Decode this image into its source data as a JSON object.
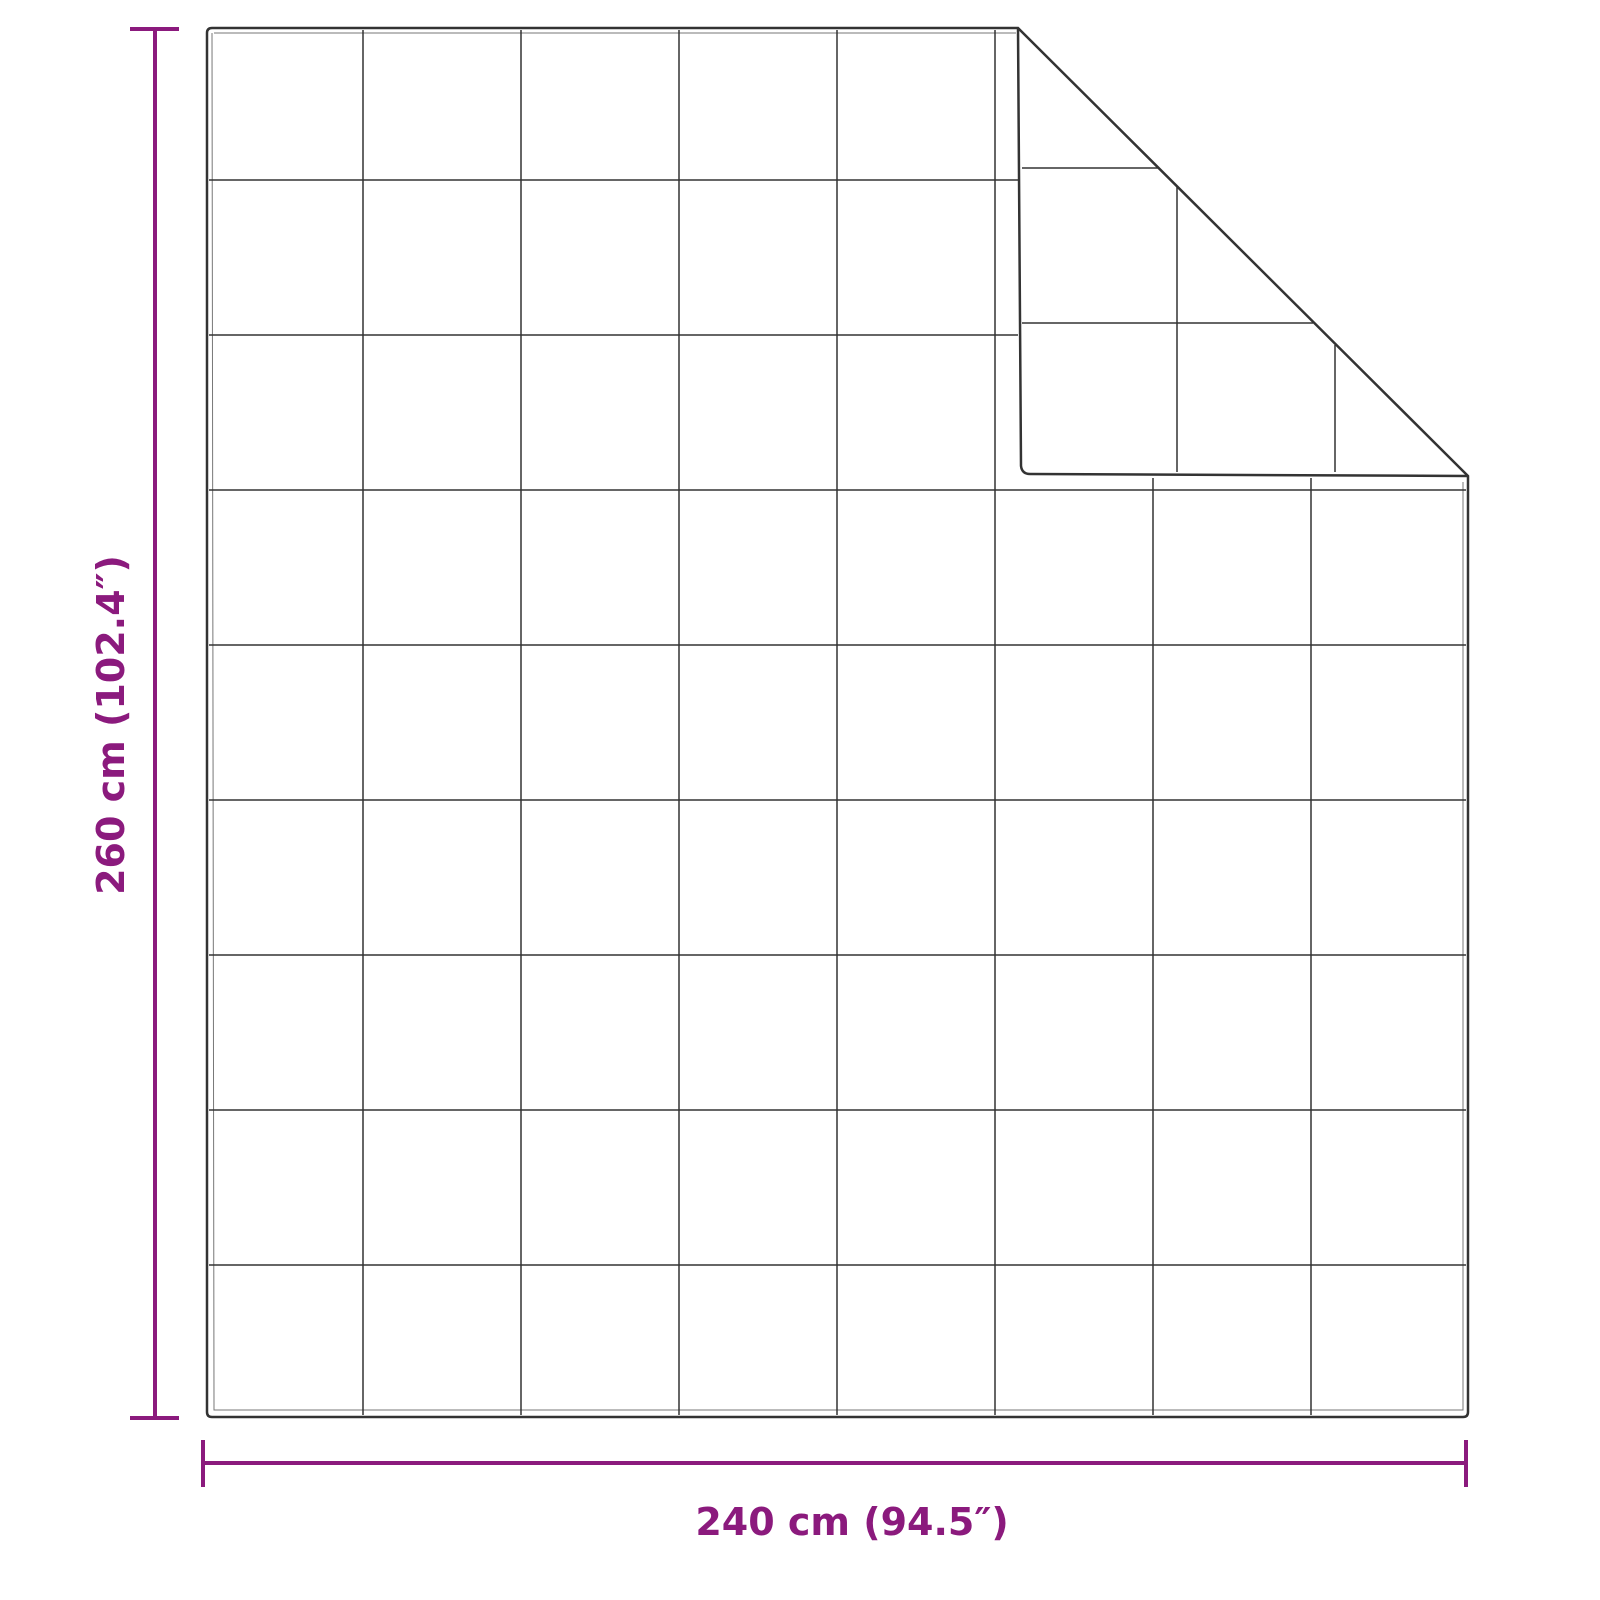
{
  "dimensions": {
    "width_label": "240 cm (94.5″)",
    "height_label": "260 cm (102.4″)",
    "color": "#8b1a7d"
  },
  "quilt": {
    "outline_color": "#333333",
    "grid_columns": 8,
    "grid_rows": 9,
    "folded_corner": "top-right"
  }
}
